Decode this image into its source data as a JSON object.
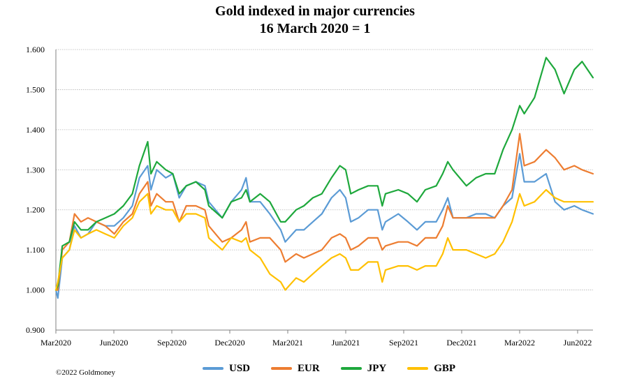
{
  "chart_data": {
    "type": "line",
    "title": "Gold indexed in major currencies",
    "subtitle": "16 March 2020 = 1",
    "xlabel": "",
    "ylabel": "",
    "ylim": [
      0.9,
      1.6
    ],
    "y_ticks": [
      "0.900",
      "1.000",
      "1.100",
      "1.200",
      "1.300",
      "1.400",
      "1.500",
      "1.600"
    ],
    "x_ticks": [
      "Mar2020",
      "Jun2020",
      "Sep2020",
      "Dec2020",
      "Mar2021",
      "Jun2021",
      "Sep2021",
      "Dec2021",
      "Mar2022",
      "Jun2022"
    ],
    "x_range": [
      "2020-03-16",
      "2022-06-30"
    ],
    "grid": "horizontal",
    "legend_position": "bottom",
    "series": [
      {
        "name": "USD",
        "color": "#5B9BD5",
        "points": [
          [
            "2020-03-16",
            1.0
          ],
          [
            "2020-03-19",
            0.98
          ],
          [
            "2020-03-26",
            1.08
          ],
          [
            "2020-04-06",
            1.1
          ],
          [
            "2020-04-14",
            1.16
          ],
          [
            "2020-04-24",
            1.13
          ],
          [
            "2020-05-05",
            1.14
          ],
          [
            "2020-05-18",
            1.17
          ],
          [
            "2020-06-01",
            1.16
          ],
          [
            "2020-06-15",
            1.16
          ],
          [
            "2020-06-29",
            1.18
          ],
          [
            "2020-07-13",
            1.21
          ],
          [
            "2020-07-24",
            1.28
          ],
          [
            "2020-08-06",
            1.31
          ],
          [
            "2020-08-11",
            1.25
          ],
          [
            "2020-08-20",
            1.3
          ],
          [
            "2020-09-03",
            1.28
          ],
          [
            "2020-09-14",
            1.29
          ],
          [
            "2020-09-24",
            1.23
          ],
          [
            "2020-10-05",
            1.26
          ],
          [
            "2020-10-20",
            1.27
          ],
          [
            "2020-11-03",
            1.26
          ],
          [
            "2020-11-09",
            1.22
          ],
          [
            "2020-11-30",
            1.18
          ],
          [
            "2020-12-14",
            1.22
          ],
          [
            "2020-12-30",
            1.25
          ],
          [
            "2021-01-06",
            1.28
          ],
          [
            "2021-01-12",
            1.22
          ],
          [
            "2021-01-28",
            1.22
          ],
          [
            "2021-02-12",
            1.19
          ],
          [
            "2021-03-01",
            1.15
          ],
          [
            "2021-03-08",
            1.12
          ],
          [
            "2021-03-25",
            1.15
          ],
          [
            "2021-04-06",
            1.15
          ],
          [
            "2021-04-20",
            1.17
          ],
          [
            "2021-05-04",
            1.19
          ],
          [
            "2021-05-19",
            1.23
          ],
          [
            "2021-06-01",
            1.25
          ],
          [
            "2021-06-10",
            1.23
          ],
          [
            "2021-06-18",
            1.17
          ],
          [
            "2021-06-30",
            1.18
          ],
          [
            "2021-07-15",
            1.2
          ],
          [
            "2021-07-30",
            1.2
          ],
          [
            "2021-08-06",
            1.15
          ],
          [
            "2021-08-11",
            1.17
          ],
          [
            "2021-08-31",
            1.19
          ],
          [
            "2021-09-15",
            1.17
          ],
          [
            "2021-09-29",
            1.15
          ],
          [
            "2021-10-12",
            1.17
          ],
          [
            "2021-10-29",
            1.17
          ],
          [
            "2021-11-08",
            1.2
          ],
          [
            "2021-11-16",
            1.23
          ],
          [
            "2021-11-24",
            1.18
          ],
          [
            "2021-12-15",
            1.18
          ],
          [
            "2021-12-30",
            1.19
          ],
          [
            "2022-01-14",
            1.19
          ],
          [
            "2022-01-28",
            1.18
          ],
          [
            "2022-02-10",
            1.21
          ],
          [
            "2022-02-24",
            1.23
          ],
          [
            "2022-03-08",
            1.34
          ],
          [
            "2022-03-15",
            1.27
          ],
          [
            "2022-03-31",
            1.27
          ],
          [
            "2022-04-18",
            1.29
          ],
          [
            "2022-05-02",
            1.22
          ],
          [
            "2022-05-16",
            1.2
          ],
          [
            "2022-06-01",
            1.21
          ],
          [
            "2022-06-13",
            1.2
          ],
          [
            "2022-06-30",
            1.19
          ]
        ]
      },
      {
        "name": "EUR",
        "color": "#ED7D31",
        "points": [
          [
            "2020-03-16",
            1.0
          ],
          [
            "2020-03-19",
            1.0
          ],
          [
            "2020-03-26",
            1.1
          ],
          [
            "2020-04-06",
            1.12
          ],
          [
            "2020-04-14",
            1.19
          ],
          [
            "2020-04-24",
            1.17
          ],
          [
            "2020-05-05",
            1.18
          ],
          [
            "2020-05-18",
            1.17
          ],
          [
            "2020-06-01",
            1.16
          ],
          [
            "2020-06-15",
            1.14
          ],
          [
            "2020-06-29",
            1.17
          ],
          [
            "2020-07-13",
            1.19
          ],
          [
            "2020-07-24",
            1.24
          ],
          [
            "2020-08-06",
            1.27
          ],
          [
            "2020-08-11",
            1.21
          ],
          [
            "2020-08-20",
            1.24
          ],
          [
            "2020-09-03",
            1.22
          ],
          [
            "2020-09-14",
            1.22
          ],
          [
            "2020-09-24",
            1.17
          ],
          [
            "2020-10-05",
            1.21
          ],
          [
            "2020-10-20",
            1.21
          ],
          [
            "2020-11-03",
            1.2
          ],
          [
            "2020-11-09",
            1.16
          ],
          [
            "2020-11-30",
            1.12
          ],
          [
            "2020-12-14",
            1.13
          ],
          [
            "2020-12-30",
            1.15
          ],
          [
            "2021-01-06",
            1.17
          ],
          [
            "2021-01-12",
            1.12
          ],
          [
            "2021-01-28",
            1.13
          ],
          [
            "2021-02-12",
            1.13
          ],
          [
            "2021-03-01",
            1.1
          ],
          [
            "2021-03-08",
            1.07
          ],
          [
            "2021-03-25",
            1.09
          ],
          [
            "2021-04-06",
            1.08
          ],
          [
            "2021-04-20",
            1.09
          ],
          [
            "2021-05-04",
            1.1
          ],
          [
            "2021-05-19",
            1.13
          ],
          [
            "2021-06-01",
            1.14
          ],
          [
            "2021-06-10",
            1.13
          ],
          [
            "2021-06-18",
            1.1
          ],
          [
            "2021-06-30",
            1.11
          ],
          [
            "2021-07-15",
            1.13
          ],
          [
            "2021-07-30",
            1.13
          ],
          [
            "2021-08-06",
            1.1
          ],
          [
            "2021-08-11",
            1.11
          ],
          [
            "2021-08-31",
            1.12
          ],
          [
            "2021-09-15",
            1.12
          ],
          [
            "2021-09-29",
            1.11
          ],
          [
            "2021-10-12",
            1.13
          ],
          [
            "2021-10-29",
            1.13
          ],
          [
            "2021-11-08",
            1.16
          ],
          [
            "2021-11-16",
            1.21
          ],
          [
            "2021-11-24",
            1.18
          ],
          [
            "2021-12-15",
            1.18
          ],
          [
            "2021-12-30",
            1.18
          ],
          [
            "2022-01-14",
            1.18
          ],
          [
            "2022-01-28",
            1.18
          ],
          [
            "2022-02-10",
            1.21
          ],
          [
            "2022-02-24",
            1.25
          ],
          [
            "2022-03-08",
            1.39
          ],
          [
            "2022-03-15",
            1.31
          ],
          [
            "2022-03-31",
            1.32
          ],
          [
            "2022-04-18",
            1.35
          ],
          [
            "2022-05-02",
            1.33
          ],
          [
            "2022-05-16",
            1.3
          ],
          [
            "2022-06-01",
            1.31
          ],
          [
            "2022-06-13",
            1.3
          ],
          [
            "2022-06-30",
            1.29
          ]
        ]
      },
      {
        "name": "JPY",
        "color": "#1EA83C",
        "points": [
          [
            "2020-03-16",
            1.0
          ],
          [
            "2020-03-19",
            1.01
          ],
          [
            "2020-03-26",
            1.11
          ],
          [
            "2020-04-06",
            1.12
          ],
          [
            "2020-04-14",
            1.17
          ],
          [
            "2020-04-24",
            1.15
          ],
          [
            "2020-05-05",
            1.15
          ],
          [
            "2020-05-18",
            1.17
          ],
          [
            "2020-06-01",
            1.18
          ],
          [
            "2020-06-15",
            1.19
          ],
          [
            "2020-06-29",
            1.21
          ],
          [
            "2020-07-13",
            1.24
          ],
          [
            "2020-07-24",
            1.31
          ],
          [
            "2020-08-06",
            1.37
          ],
          [
            "2020-08-11",
            1.29
          ],
          [
            "2020-08-20",
            1.32
          ],
          [
            "2020-09-03",
            1.3
          ],
          [
            "2020-09-14",
            1.29
          ],
          [
            "2020-09-24",
            1.24
          ],
          [
            "2020-10-05",
            1.26
          ],
          [
            "2020-10-20",
            1.27
          ],
          [
            "2020-11-03",
            1.25
          ],
          [
            "2020-11-09",
            1.21
          ],
          [
            "2020-11-30",
            1.18
          ],
          [
            "2020-12-14",
            1.22
          ],
          [
            "2020-12-30",
            1.23
          ],
          [
            "2021-01-06",
            1.25
          ],
          [
            "2021-01-12",
            1.22
          ],
          [
            "2021-01-28",
            1.24
          ],
          [
            "2021-02-12",
            1.22
          ],
          [
            "2021-03-01",
            1.17
          ],
          [
            "2021-03-08",
            1.17
          ],
          [
            "2021-03-25",
            1.2
          ],
          [
            "2021-04-06",
            1.21
          ],
          [
            "2021-04-20",
            1.23
          ],
          [
            "2021-05-04",
            1.24
          ],
          [
            "2021-05-19",
            1.28
          ],
          [
            "2021-06-01",
            1.31
          ],
          [
            "2021-06-10",
            1.3
          ],
          [
            "2021-06-18",
            1.24
          ],
          [
            "2021-06-30",
            1.25
          ],
          [
            "2021-07-15",
            1.26
          ],
          [
            "2021-07-30",
            1.26
          ],
          [
            "2021-08-06",
            1.21
          ],
          [
            "2021-08-11",
            1.24
          ],
          [
            "2021-08-31",
            1.25
          ],
          [
            "2021-09-15",
            1.24
          ],
          [
            "2021-09-29",
            1.22
          ],
          [
            "2021-10-12",
            1.25
          ],
          [
            "2021-10-29",
            1.26
          ],
          [
            "2021-11-08",
            1.29
          ],
          [
            "2021-11-16",
            1.32
          ],
          [
            "2021-11-24",
            1.3
          ],
          [
            "2021-12-15",
            1.26
          ],
          [
            "2021-12-30",
            1.28
          ],
          [
            "2022-01-14",
            1.29
          ],
          [
            "2022-01-28",
            1.29
          ],
          [
            "2022-02-10",
            1.35
          ],
          [
            "2022-02-24",
            1.4
          ],
          [
            "2022-03-08",
            1.46
          ],
          [
            "2022-03-15",
            1.44
          ],
          [
            "2022-03-31",
            1.48
          ],
          [
            "2022-04-18",
            1.58
          ],
          [
            "2022-05-02",
            1.55
          ],
          [
            "2022-05-16",
            1.49
          ],
          [
            "2022-06-01",
            1.55
          ],
          [
            "2022-06-13",
            1.57
          ],
          [
            "2022-06-30",
            1.53
          ]
        ]
      },
      {
        "name": "GBP",
        "color": "#FFC000",
        "points": [
          [
            "2020-03-16",
            1.0
          ],
          [
            "2020-03-19",
            1.02
          ],
          [
            "2020-03-26",
            1.08
          ],
          [
            "2020-04-06",
            1.1
          ],
          [
            "2020-04-14",
            1.15
          ],
          [
            "2020-04-24",
            1.13
          ],
          [
            "2020-05-05",
            1.14
          ],
          [
            "2020-05-18",
            1.15
          ],
          [
            "2020-06-01",
            1.14
          ],
          [
            "2020-06-15",
            1.13
          ],
          [
            "2020-06-29",
            1.16
          ],
          [
            "2020-07-13",
            1.18
          ],
          [
            "2020-07-24",
            1.22
          ],
          [
            "2020-08-06",
            1.24
          ],
          [
            "2020-08-11",
            1.19
          ],
          [
            "2020-08-20",
            1.21
          ],
          [
            "2020-09-03",
            1.2
          ],
          [
            "2020-09-14",
            1.2
          ],
          [
            "2020-09-24",
            1.17
          ],
          [
            "2020-10-05",
            1.19
          ],
          [
            "2020-10-20",
            1.19
          ],
          [
            "2020-11-03",
            1.18
          ],
          [
            "2020-11-09",
            1.13
          ],
          [
            "2020-11-30",
            1.1
          ],
          [
            "2020-12-14",
            1.13
          ],
          [
            "2020-12-30",
            1.12
          ],
          [
            "2021-01-06",
            1.13
          ],
          [
            "2021-01-12",
            1.1
          ],
          [
            "2021-01-28",
            1.08
          ],
          [
            "2021-02-12",
            1.04
          ],
          [
            "2021-03-01",
            1.02
          ],
          [
            "2021-03-08",
            1.0
          ],
          [
            "2021-03-25",
            1.03
          ],
          [
            "2021-04-06",
            1.02
          ],
          [
            "2021-04-20",
            1.04
          ],
          [
            "2021-05-04",
            1.06
          ],
          [
            "2021-05-19",
            1.08
          ],
          [
            "2021-06-01",
            1.09
          ],
          [
            "2021-06-10",
            1.08
          ],
          [
            "2021-06-18",
            1.05
          ],
          [
            "2021-06-30",
            1.05
          ],
          [
            "2021-07-15",
            1.07
          ],
          [
            "2021-07-30",
            1.07
          ],
          [
            "2021-08-06",
            1.02
          ],
          [
            "2021-08-11",
            1.05
          ],
          [
            "2021-08-31",
            1.06
          ],
          [
            "2021-09-15",
            1.06
          ],
          [
            "2021-09-29",
            1.05
          ],
          [
            "2021-10-12",
            1.06
          ],
          [
            "2021-10-29",
            1.06
          ],
          [
            "2021-11-08",
            1.09
          ],
          [
            "2021-11-16",
            1.13
          ],
          [
            "2021-11-24",
            1.1
          ],
          [
            "2021-12-15",
            1.1
          ],
          [
            "2021-12-30",
            1.09
          ],
          [
            "2022-01-14",
            1.08
          ],
          [
            "2022-01-28",
            1.09
          ],
          [
            "2022-02-10",
            1.12
          ],
          [
            "2022-02-24",
            1.17
          ],
          [
            "2022-03-08",
            1.24
          ],
          [
            "2022-03-15",
            1.21
          ],
          [
            "2022-03-31",
            1.22
          ],
          [
            "2022-04-18",
            1.25
          ],
          [
            "2022-05-02",
            1.23
          ],
          [
            "2022-05-16",
            1.22
          ],
          [
            "2022-06-01",
            1.22
          ],
          [
            "2022-06-13",
            1.22
          ],
          [
            "2022-06-30",
            1.22
          ]
        ]
      }
    ]
  },
  "copyright": "©2022 Goldmoney"
}
